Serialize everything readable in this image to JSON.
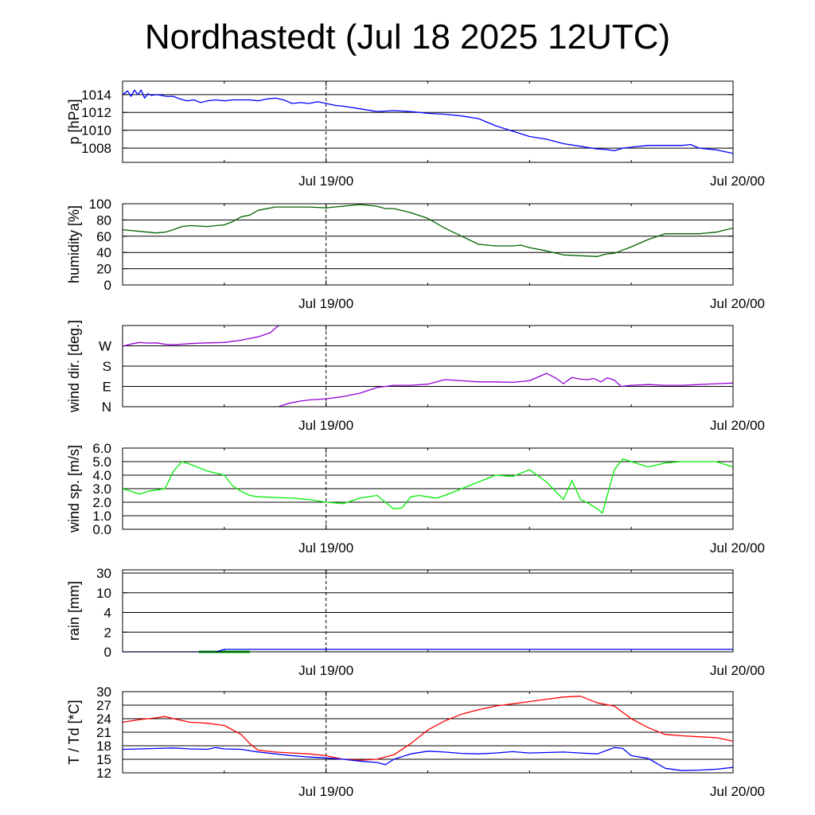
{
  "title": "Nordhastedt (Jul 18 2025 12UTC)",
  "chart_data": [
    {
      "id": "pressure",
      "type": "line",
      "ylabel": "p [hPa]",
      "ylim": [
        1006.4,
        1015.5
      ],
      "yticks": [
        1008,
        1010,
        1012,
        1014
      ],
      "ytick_labels": [
        "1008",
        "1010",
        "1012",
        "1014"
      ],
      "xlim": [
        0,
        36
      ],
      "xticks": [
        12,
        36
      ],
      "xtick_labels": [
        "Jul 19/00",
        "Jul 20/00"
      ],
      "grid_y": true,
      "dashed_x": 12,
      "series": [
        {
          "color": "#0000ff",
          "x": [
            0,
            0.3,
            0.5,
            0.7,
            0.9,
            1.1,
            1.3,
            1.5,
            1.7,
            2,
            2.3,
            2.6,
            3,
            3.4,
            3.8,
            4.2,
            4.6,
            5,
            5.5,
            6,
            6.5,
            7,
            7.5,
            8,
            8.5,
            9,
            9.5,
            10,
            10.5,
            11,
            11.5,
            12,
            12.5,
            13,
            14,
            15,
            16,
            17,
            18,
            19,
            20,
            21,
            22,
            23,
            24,
            25,
            26,
            27,
            28,
            28.5,
            29,
            29.5,
            30,
            31,
            32,
            33,
            33.5,
            34,
            35,
            36
          ],
          "y": [
            1014.0,
            1014.4,
            1013.8,
            1014.5,
            1014.0,
            1014.5,
            1013.6,
            1014.1,
            1013.9,
            1014.0,
            1013.9,
            1013.8,
            1013.8,
            1013.5,
            1013.3,
            1013.4,
            1013.1,
            1013.3,
            1013.4,
            1013.3,
            1013.4,
            1013.4,
            1013.4,
            1013.3,
            1013.5,
            1013.6,
            1013.4,
            1013.0,
            1013.1,
            1013.0,
            1013.2,
            1013.0,
            1012.8,
            1012.7,
            1012.4,
            1012.1,
            1012.2,
            1012.1,
            1011.9,
            1011.8,
            1011.6,
            1011.3,
            1010.5,
            1009.9,
            1009.3,
            1009.0,
            1008.5,
            1008.2,
            1007.9,
            1007.85,
            1007.7,
            1008.0,
            1008.1,
            1008.3,
            1008.3,
            1008.3,
            1008.4,
            1008.0,
            1007.8,
            1007.4
          ]
        }
      ]
    },
    {
      "id": "humidity",
      "type": "line",
      "ylabel": "humidity [%]",
      "ylim": [
        0,
        100
      ],
      "yticks": [
        0,
        20,
        40,
        60,
        80,
        100
      ],
      "ytick_labels": [
        "0",
        "20",
        "40",
        "60",
        "80",
        "100"
      ],
      "xlim": [
        0,
        36
      ],
      "xticks": [
        12,
        36
      ],
      "xtick_labels": [
        "Jul 19/00",
        "Jul 20/00"
      ],
      "grid_y": true,
      "dashed_x": 12,
      "series": [
        {
          "color": "#006400",
          "x": [
            0,
            1,
            1.5,
            2,
            2.5,
            3,
            3.5,
            4,
            5,
            5.5,
            6,
            6.5,
            7,
            7.5,
            8,
            9,
            10,
            11,
            12,
            13,
            14,
            15,
            15.5,
            16,
            17,
            18,
            19,
            20,
            21,
            22,
            23,
            23.5,
            24,
            25,
            26,
            27,
            28,
            28.5,
            29,
            30,
            31,
            32,
            33,
            34,
            35,
            36
          ],
          "y": [
            68,
            66,
            65,
            64,
            65,
            68,
            72,
            73,
            72,
            73,
            74,
            78,
            84,
            86,
            92,
            96,
            96,
            96,
            95,
            97,
            99,
            97,
            94,
            94,
            89,
            82,
            70,
            60,
            50,
            48,
            48,
            49,
            46,
            42,
            37,
            36,
            35,
            38,
            39,
            47,
            56,
            63,
            63,
            63,
            65,
            70
          ]
        }
      ]
    },
    {
      "id": "wind_direction",
      "type": "line",
      "ylabel": "wind dir. [deg.]",
      "ylim": [
        0,
        360
      ],
      "yticks": [
        0,
        90,
        180,
        270
      ],
      "ytick_labels": [
        "N",
        "E",
        "S",
        "W"
      ],
      "xlim": [
        0,
        36
      ],
      "xticks": [
        12,
        36
      ],
      "xtick_labels": [
        "Jul 19/00",
        "Jul 20/00"
      ],
      "grid_y": true,
      "dashed_x": 12,
      "series": [
        {
          "color": "#9400d3",
          "x": [
            0,
            0.5,
            1,
            1.5,
            2,
            2.5,
            3,
            4,
            5,
            6,
            7,
            8,
            8.7,
            9.2
          ],
          "y": [
            268,
            278,
            285,
            282,
            283,
            277,
            275,
            280,
            283,
            285,
            295,
            310,
            328,
            360
          ]
        },
        {
          "color": "#9400d3",
          "x": [
            9.2,
            9.8,
            10.5,
            11,
            12,
            13,
            14,
            15,
            16,
            17,
            18,
            19,
            20,
            21,
            22,
            23,
            24,
            25,
            25.6,
            26,
            26.5,
            27,
            27.4,
            27.8,
            28.2,
            28.6,
            29,
            29.4,
            30,
            31,
            32,
            33,
            34,
            35,
            36
          ],
          "y": [
            0,
            15,
            25,
            30,
            35,
            45,
            60,
            85,
            95,
            95,
            100,
            120,
            115,
            110,
            110,
            108,
            115,
            148,
            125,
            102,
            130,
            122,
            120,
            125,
            110,
            128,
            118,
            90,
            95,
            98,
            95,
            95,
            98,
            102,
            105
          ]
        }
      ]
    },
    {
      "id": "wind_speed",
      "type": "line",
      "ylabel": "wind sp. [m/s]",
      "ylim": [
        0,
        6
      ],
      "yticks": [
        0,
        1,
        2,
        3,
        4,
        5,
        6
      ],
      "ytick_labels": [
        "0.0",
        "1.0",
        "2.0",
        "3.0",
        "4.0",
        "5.0",
        "6.0"
      ],
      "xlim": [
        0,
        36
      ],
      "xticks": [
        12,
        36
      ],
      "xtick_labels": [
        "Jul 19/00",
        "Jul 20/00"
      ],
      "grid_y": true,
      "dashed_x": 12,
      "series": [
        {
          "color": "#00ee00",
          "x": [
            0,
            0.5,
            1,
            1.5,
            2,
            2.5,
            3,
            3.5,
            4,
            5,
            6,
            6.5,
            7,
            7.5,
            8,
            9,
            10,
            11,
            12,
            13,
            14,
            15,
            15.5,
            16,
            16.5,
            17,
            17.5,
            18,
            18.5,
            19,
            20,
            21,
            22,
            23,
            24,
            25,
            26,
            26.5,
            27,
            27.5,
            28,
            28.3,
            29,
            29.5,
            30,
            30.5,
            31,
            32,
            33,
            34,
            35,
            36
          ],
          "y": [
            3.0,
            2.8,
            2.6,
            2.8,
            2.9,
            3.0,
            4.3,
            5.0,
            4.8,
            4.3,
            4.0,
            3.2,
            2.8,
            2.5,
            2.4,
            2.35,
            2.3,
            2.2,
            2.0,
            1.9,
            2.3,
            2.5,
            2.0,
            1.5,
            1.6,
            2.4,
            2.5,
            2.4,
            2.3,
            2.5,
            3.0,
            3.5,
            4.0,
            3.9,
            4.4,
            3.5,
            2.2,
            3.6,
            2.2,
            1.9,
            1.5,
            1.2,
            4.4,
            5.2,
            5.0,
            4.8,
            4.6,
            4.9,
            5.0,
            5.0,
            5.0,
            4.6
          ]
        }
      ]
    },
    {
      "id": "rain",
      "type": "line",
      "ylabel": "rain [mm]",
      "ylim": [
        0,
        30
      ],
      "scale": "nonlinear",
      "yticks": [
        0,
        2,
        4,
        10,
        30
      ],
      "ytick_labels": [
        "0",
        "2",
        "4",
        "10",
        "30"
      ],
      "xlim": [
        0,
        36
      ],
      "xticks": [
        12,
        36
      ],
      "xtick_labels": [
        "Jul 19/00",
        "Jul 20/00"
      ],
      "grid_y": true,
      "dashed_x": 12,
      "series": [
        {
          "color": "#00cc00",
          "x": [
            4.5,
            7.5
          ],
          "y": [
            0,
            0
          ],
          "width": 3
        },
        {
          "color": "#0000ff",
          "x": [
            0,
            5.5,
            6,
            36
          ],
          "y": [
            0,
            0,
            0.25,
            0.25
          ]
        }
      ]
    },
    {
      "id": "temperature",
      "type": "line",
      "ylabel": "T / Td [*C]",
      "ylim": [
        12,
        30
      ],
      "yticks": [
        12,
        15,
        18,
        21,
        24,
        27,
        30
      ],
      "ytick_labels": [
        "12",
        "15",
        "18",
        "21",
        "24",
        "27",
        "30"
      ],
      "xlim": [
        0,
        36
      ],
      "xticks": [
        12,
        36
      ],
      "xtick_labels": [
        "Jul 19/00",
        "Jul 20/00"
      ],
      "grid_y": true,
      "dashed_x": 12,
      "series": [
        {
          "color": "#ff0000",
          "x": [
            0,
            1,
            2,
            2.5,
            3,
            4,
            5,
            6,
            7,
            7.5,
            8,
            9,
            10,
            11,
            12,
            13,
            14,
            15,
            16,
            17,
            18,
            19,
            20,
            21,
            22,
            23,
            24,
            25,
            26,
            27,
            28,
            29,
            30,
            31,
            32,
            33,
            34,
            35,
            36
          ],
          "y": [
            23.2,
            23.8,
            24.2,
            24.5,
            24.0,
            23.2,
            23.0,
            22.5,
            20.5,
            18.5,
            17.0,
            16.6,
            16.4,
            16.2,
            15.8,
            15.0,
            14.8,
            15.0,
            16.0,
            18.5,
            21.5,
            23.5,
            25.0,
            26.0,
            26.8,
            27.3,
            27.8,
            28.3,
            28.8,
            29.0,
            27.5,
            26.8,
            24.0,
            22.0,
            20.5,
            20.2,
            20.0,
            19.8,
            19.0
          ]
        },
        {
          "color": "#0000ff",
          "x": [
            0,
            1,
            2,
            3,
            4,
            5,
            5.5,
            6,
            7,
            8,
            9,
            10,
            11,
            12,
            13,
            14,
            15,
            15.5,
            16,
            17,
            18,
            19,
            20,
            21,
            22,
            23,
            24,
            25,
            26,
            27,
            28,
            29,
            29.5,
            30,
            31,
            32,
            33,
            34,
            35,
            36
          ],
          "y": [
            17.2,
            17.3,
            17.4,
            17.5,
            17.3,
            17.2,
            17.6,
            17.3,
            17.2,
            16.6,
            16.2,
            15.8,
            15.5,
            15.3,
            15.0,
            14.6,
            14.3,
            13.8,
            15.0,
            16.2,
            16.8,
            16.6,
            16.3,
            16.2,
            16.4,
            16.7,
            16.4,
            16.5,
            16.6,
            16.4,
            16.2,
            17.6,
            17.4,
            15.8,
            15.2,
            13.0,
            12.5,
            12.6,
            12.8,
            13.2
          ]
        }
      ]
    }
  ]
}
